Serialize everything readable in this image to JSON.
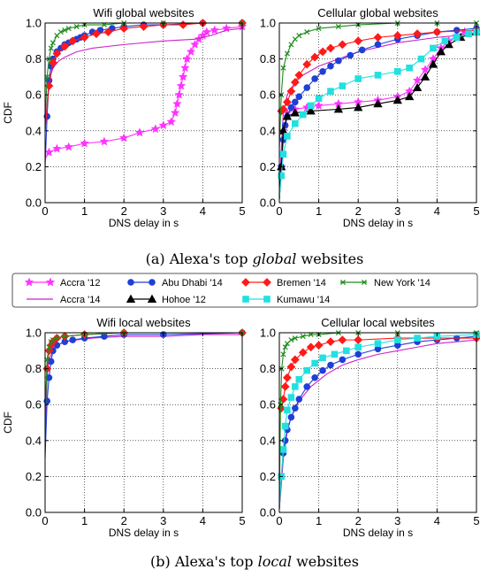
{
  "captions": {
    "a_prefix": "(a) Alexa's top ",
    "a_emph": "global",
    "a_suffix": " websites",
    "b_prefix": "(b) Alexa's top ",
    "b_emph": "local",
    "b_suffix": " websites"
  },
  "legend": [
    {
      "label": "Accra '12",
      "color": "#ff33ff",
      "marker": "star"
    },
    {
      "label": "Accra '14",
      "color": "#cc22cc",
      "marker": "none"
    },
    {
      "label": "Abu Dhabi '14",
      "color": "#1f3fd8",
      "marker": "circle"
    },
    {
      "label": "Hohoe '12",
      "color": "#000000",
      "marker": "triangle"
    },
    {
      "label": "Bremen '14",
      "color": "#ff1a1a",
      "marker": "diamond"
    },
    {
      "label": "Kumawu '14",
      "color": "#22e0e0",
      "marker": "square"
    },
    {
      "label": "New York '14",
      "color": "#1e8c1e",
      "marker": "x"
    }
  ],
  "chart_data": [
    {
      "type": "line",
      "title": "Wifi global websites",
      "xlabel": "DNS delay in s",
      "ylabel": "CDF",
      "xlim": [
        0,
        5
      ],
      "ylim": [
        0,
        1
      ],
      "xticks": [
        "0",
        "1",
        "2",
        "3",
        "4",
        "5"
      ],
      "yticks": [
        "0.0",
        "0.2",
        "0.4",
        "0.6",
        "0.8",
        "1.0"
      ],
      "grid": true,
      "series": [
        {
          "name": "Accra '12",
          "color": "#ff33ff",
          "marker": "star",
          "x": [
            0.02,
            0.1,
            0.3,
            0.6,
            1.0,
            1.5,
            2.0,
            2.4,
            2.8,
            3.0,
            3.2,
            3.3,
            3.35,
            3.4,
            3.45,
            3.5,
            3.55,
            3.6,
            3.7,
            3.8,
            3.9,
            4.0,
            4.1,
            4.3,
            4.6,
            5.0
          ],
          "y": [
            0.25,
            0.28,
            0.3,
            0.31,
            0.33,
            0.34,
            0.36,
            0.39,
            0.41,
            0.43,
            0.45,
            0.5,
            0.55,
            0.6,
            0.65,
            0.7,
            0.75,
            0.8,
            0.84,
            0.88,
            0.91,
            0.93,
            0.95,
            0.96,
            0.97,
            0.98
          ]
        },
        {
          "name": "Accra '14",
          "color": "#cc22cc",
          "marker": "none",
          "x": [
            0.0,
            0.05,
            0.1,
            0.2,
            0.35,
            0.5,
            0.8,
            1.2,
            2.0,
            3.0,
            3.8,
            4.2,
            4.6,
            5.0
          ],
          "y": [
            0.4,
            0.55,
            0.68,
            0.75,
            0.79,
            0.81,
            0.84,
            0.86,
            0.88,
            0.9,
            0.91,
            0.93,
            0.96,
            0.97
          ]
        },
        {
          "name": "Abu Dhabi '14",
          "color": "#1f3fd8",
          "marker": "circle",
          "x": [
            0.0,
            0.05,
            0.1,
            0.15,
            0.2,
            0.3,
            0.4,
            0.5,
            0.6,
            0.7,
            0.8,
            0.9,
            1.0,
            1.2,
            1.4,
            1.7,
            2.0,
            2.5,
            3.0,
            4.0,
            5.0
          ],
          "y": [
            0.2,
            0.48,
            0.68,
            0.76,
            0.8,
            0.84,
            0.86,
            0.88,
            0.89,
            0.9,
            0.91,
            0.92,
            0.93,
            0.95,
            0.96,
            0.97,
            0.98,
            0.99,
            0.99,
            1.0,
            1.0
          ]
        },
        {
          "name": "Bremen '14",
          "color": "#ff1a1a",
          "marker": "diamond",
          "x": [
            0.0,
            0.1,
            0.2,
            0.3,
            0.5,
            0.7,
            1.0,
            1.3,
            1.6,
            2.0,
            2.5,
            3.0,
            3.5,
            4.0,
            5.0
          ],
          "y": [
            0.4,
            0.65,
            0.78,
            0.83,
            0.87,
            0.9,
            0.92,
            0.94,
            0.95,
            0.97,
            0.98,
            0.99,
            0.99,
            1.0,
            1.0
          ]
        },
        {
          "name": "New York '14",
          "color": "#1e8c1e",
          "marker": "x",
          "x": [
            0.0,
            0.05,
            0.1,
            0.15,
            0.2,
            0.3,
            0.4,
            0.5,
            0.6,
            0.8,
            1.0,
            1.5,
            2.0,
            3.0,
            5.0
          ],
          "y": [
            0.45,
            0.7,
            0.8,
            0.86,
            0.89,
            0.93,
            0.95,
            0.96,
            0.97,
            0.98,
            0.99,
            0.99,
            1.0,
            1.0,
            1.0
          ]
        }
      ]
    },
    {
      "type": "line",
      "title": "Cellular global websites",
      "xlabel": "DNS delay in s",
      "ylabel": "",
      "xlim": [
        0,
        5
      ],
      "ylim": [
        0,
        1
      ],
      "xticks": [
        "0",
        "1",
        "2",
        "3",
        "4",
        "5"
      ],
      "yticks": [
        "0.0",
        "0.2",
        "0.4",
        "0.6",
        "0.8",
        "1.0"
      ],
      "grid": true,
      "series": [
        {
          "name": "Accra '12",
          "color": "#ff33ff",
          "marker": "star",
          "x": [
            0.0,
            0.05,
            0.1,
            0.2,
            0.4,
            0.7,
            1.0,
            1.5,
            2.0,
            2.5,
            3.0,
            3.3,
            3.5,
            3.7,
            3.9,
            4.1,
            4.3,
            4.5,
            4.7,
            5.0
          ],
          "y": [
            0.02,
            0.2,
            0.4,
            0.5,
            0.52,
            0.53,
            0.54,
            0.55,
            0.56,
            0.57,
            0.59,
            0.62,
            0.68,
            0.74,
            0.8,
            0.86,
            0.9,
            0.93,
            0.95,
            0.96
          ]
        },
        {
          "name": "Accra '14",
          "color": "#cc22cc",
          "marker": "none",
          "x": [
            0.0,
            0.05,
            0.1,
            0.2,
            0.4,
            0.6,
            1.0,
            1.5,
            2.0,
            3.0,
            4.0,
            5.0
          ],
          "y": [
            0.05,
            0.3,
            0.5,
            0.6,
            0.67,
            0.71,
            0.76,
            0.8,
            0.84,
            0.89,
            0.92,
            0.94
          ]
        },
        {
          "name": "Abu Dhabi '14",
          "color": "#1f3fd8",
          "marker": "circle",
          "x": [
            0.0,
            0.05,
            0.1,
            0.15,
            0.2,
            0.3,
            0.4,
            0.5,
            0.7,
            0.9,
            1.1,
            1.3,
            1.5,
            1.8,
            2.1,
            2.5,
            3.0,
            3.5,
            4.0,
            4.5,
            5.0
          ],
          "y": [
            0.02,
            0.2,
            0.35,
            0.43,
            0.48,
            0.53,
            0.56,
            0.59,
            0.64,
            0.69,
            0.73,
            0.76,
            0.79,
            0.82,
            0.85,
            0.88,
            0.91,
            0.93,
            0.95,
            0.96,
            0.97
          ]
        },
        {
          "name": "Hohoe '12",
          "color": "#000000",
          "marker": "triangle",
          "x": [
            0.0,
            0.05,
            0.1,
            0.2,
            0.4,
            0.8,
            1.5,
            2.0,
            2.5,
            3.0,
            3.3,
            3.5,
            3.7,
            3.9,
            4.1,
            4.3,
            4.6,
            5.0
          ],
          "y": [
            0.02,
            0.2,
            0.4,
            0.48,
            0.5,
            0.51,
            0.52,
            0.53,
            0.55,
            0.57,
            0.59,
            0.64,
            0.7,
            0.77,
            0.84,
            0.88,
            0.92,
            0.95
          ]
        },
        {
          "name": "Bremen '14",
          "color": "#ff1a1a",
          "marker": "diamond",
          "x": [
            0.0,
            0.05,
            0.1,
            0.2,
            0.3,
            0.4,
            0.5,
            0.7,
            0.9,
            1.1,
            1.3,
            1.6,
            2.0,
            2.5,
            3.0,
            3.5,
            4.0,
            5.0
          ],
          "y": [
            0.5,
            0.51,
            0.52,
            0.56,
            0.62,
            0.67,
            0.71,
            0.77,
            0.81,
            0.84,
            0.86,
            0.88,
            0.9,
            0.92,
            0.93,
            0.94,
            0.95,
            0.96
          ]
        },
        {
          "name": "Kumawu '14",
          "color": "#22e0e0",
          "marker": "square",
          "x": [
            0.0,
            0.05,
            0.1,
            0.2,
            0.4,
            0.6,
            0.8,
            1.0,
            1.3,
            1.6,
            2.0,
            2.5,
            3.0,
            3.3,
            3.6,
            3.9,
            4.2,
            4.5,
            4.8,
            5.0
          ],
          "y": [
            0.02,
            0.15,
            0.27,
            0.37,
            0.44,
            0.49,
            0.54,
            0.58,
            0.62,
            0.65,
            0.69,
            0.71,
            0.73,
            0.75,
            0.8,
            0.86,
            0.9,
            0.92,
            0.94,
            0.95
          ]
        },
        {
          "name": "New York '14",
          "color": "#1e8c1e",
          "marker": "x",
          "x": [
            0.0,
            0.05,
            0.1,
            0.2,
            0.3,
            0.4,
            0.5,
            0.7,
            1.0,
            1.5,
            2.0,
            3.0,
            4.0,
            5.0
          ],
          "y": [
            0.3,
            0.6,
            0.75,
            0.83,
            0.88,
            0.91,
            0.93,
            0.95,
            0.97,
            0.98,
            0.99,
            1.0,
            1.0,
            1.0
          ]
        }
      ]
    },
    {
      "type": "line",
      "title": "Wifi local websites",
      "xlabel": "DNS delay in s",
      "ylabel": "CDF",
      "xlim": [
        0,
        5
      ],
      "ylim": [
        0,
        1
      ],
      "xticks": [
        "0",
        "1",
        "2",
        "3",
        "4",
        "5"
      ],
      "yticks": [
        "0.0",
        "0.2",
        "0.4",
        "0.6",
        "0.8",
        "1.0"
      ],
      "grid": true,
      "series": [
        {
          "name": "Accra '14",
          "color": "#cc22cc",
          "marker": "none",
          "x": [
            0.0,
            0.05,
            0.1,
            0.2,
            0.3,
            0.5,
            0.8,
            1.2,
            2.0,
            3.0,
            4.0,
            5.0
          ],
          "y": [
            0.35,
            0.75,
            0.85,
            0.9,
            0.93,
            0.95,
            0.96,
            0.97,
            0.98,
            0.98,
            0.99,
            0.99
          ]
        },
        {
          "name": "Abu Dhabi '14",
          "color": "#1f3fd8",
          "marker": "circle",
          "x": [
            0.0,
            0.05,
            0.1,
            0.15,
            0.2,
            0.3,
            0.5,
            0.7,
            1.0,
            1.5,
            2.0,
            3.0,
            5.0
          ],
          "y": [
            0.3,
            0.62,
            0.75,
            0.84,
            0.9,
            0.93,
            0.95,
            0.96,
            0.97,
            0.98,
            0.99,
            0.99,
            1.0
          ]
        },
        {
          "name": "Bremen '14",
          "color": "#ff1a1a",
          "marker": "diamond",
          "x": [
            0.0,
            0.05,
            0.1,
            0.15,
            0.2,
            0.3,
            0.5,
            1.0,
            2.0,
            5.0
          ],
          "y": [
            0.6,
            0.8,
            0.9,
            0.93,
            0.95,
            0.97,
            0.98,
            0.99,
            1.0,
            1.0
          ]
        },
        {
          "name": "New York '14",
          "color": "#1e8c1e",
          "marker": "x",
          "x": [
            0.0,
            0.05,
            0.1,
            0.15,
            0.2,
            0.3,
            0.5,
            1.0,
            2.0,
            5.0
          ],
          "y": [
            0.5,
            0.85,
            0.92,
            0.95,
            0.96,
            0.97,
            0.98,
            0.99,
            1.0,
            1.0
          ]
        }
      ]
    },
    {
      "type": "line",
      "title": "Cellular local websites",
      "xlabel": "DNS delay in s",
      "ylabel": "",
      "xlim": [
        0,
        5
      ],
      "ylim": [
        0,
        1
      ],
      "xticks": [
        "0",
        "1",
        "2",
        "3",
        "4",
        "5"
      ],
      "yticks": [
        "0.0",
        "0.2",
        "0.4",
        "0.6",
        "0.8",
        "1.0"
      ],
      "grid": true,
      "series": [
        {
          "name": "Accra '14",
          "color": "#cc22cc",
          "marker": "none",
          "x": [
            0.0,
            0.05,
            0.1,
            0.2,
            0.3,
            0.5,
            0.8,
            1.2,
            1.6,
            2.0,
            2.5,
            3.0,
            3.5,
            4.0,
            4.5,
            5.0
          ],
          "y": [
            0.02,
            0.15,
            0.3,
            0.45,
            0.53,
            0.62,
            0.7,
            0.77,
            0.82,
            0.85,
            0.88,
            0.9,
            0.92,
            0.94,
            0.95,
            0.96
          ]
        },
        {
          "name": "Abu Dhabi '14",
          "color": "#1f3fd8",
          "marker": "circle",
          "x": [
            0.0,
            0.05,
            0.1,
            0.15,
            0.2,
            0.3,
            0.4,
            0.5,
            0.7,
            0.9,
            1.1,
            1.3,
            1.6,
            2.0,
            2.5,
            3.0,
            3.5,
            4.0,
            4.5,
            5.0
          ],
          "y": [
            0.02,
            0.2,
            0.33,
            0.4,
            0.46,
            0.53,
            0.58,
            0.63,
            0.7,
            0.75,
            0.79,
            0.82,
            0.85,
            0.88,
            0.91,
            0.93,
            0.95,
            0.96,
            0.97,
            0.98
          ]
        },
        {
          "name": "Bremen '14",
          "color": "#ff1a1a",
          "marker": "diamond",
          "x": [
            0.0,
            0.05,
            0.1,
            0.15,
            0.2,
            0.3,
            0.4,
            0.6,
            0.8,
            1.0,
            1.3,
            1.6,
            2.0,
            3.0,
            4.0,
            5.0
          ],
          "y": [
            0.55,
            0.58,
            0.63,
            0.7,
            0.75,
            0.81,
            0.85,
            0.89,
            0.92,
            0.93,
            0.95,
            0.96,
            0.96,
            0.97,
            0.97,
            0.97
          ]
        },
        {
          "name": "Kumawu '14",
          "color": "#22e0e0",
          "marker": "square",
          "x": [
            0.0,
            0.05,
            0.1,
            0.15,
            0.2,
            0.3,
            0.4,
            0.5,
            0.7,
            0.9,
            1.1,
            1.4,
            1.7,
            2.0,
            2.5,
            3.0,
            3.5,
            4.0,
            5.0
          ],
          "y": [
            0.02,
            0.2,
            0.35,
            0.48,
            0.57,
            0.64,
            0.7,
            0.74,
            0.79,
            0.83,
            0.86,
            0.88,
            0.9,
            0.92,
            0.94,
            0.96,
            0.97,
            0.98,
            0.99
          ]
        },
        {
          "name": "New York '14",
          "color": "#1e8c1e",
          "marker": "x",
          "x": [
            0.0,
            0.03,
            0.06,
            0.1,
            0.15,
            0.2,
            0.3,
            0.4,
            0.6,
            0.8,
            1.0,
            1.5,
            2.0,
            3.0,
            5.0
          ],
          "y": [
            0.02,
            0.6,
            0.8,
            0.88,
            0.92,
            0.94,
            0.96,
            0.97,
            0.98,
            0.99,
            0.99,
            1.0,
            1.0,
            1.0,
            1.0
          ]
        }
      ]
    }
  ]
}
